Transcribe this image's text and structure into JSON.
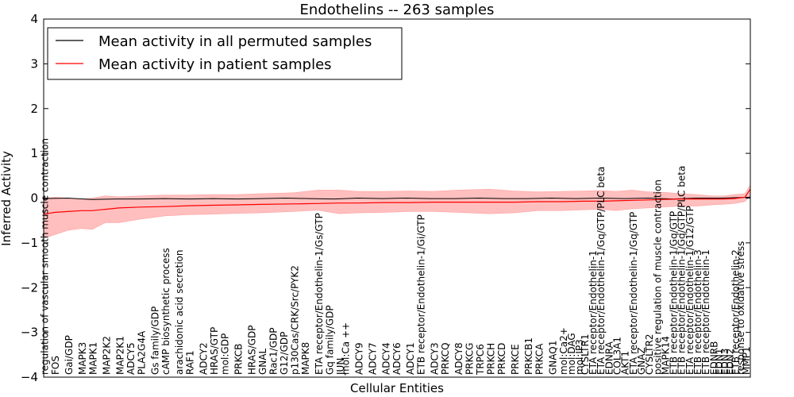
{
  "chart_data": {
    "type": "line",
    "title": "Endothelins -- 263 samples",
    "xlabel": "Cellular Entities",
    "ylabel": "Inferred Activity",
    "ylim": [
      -4,
      4
    ],
    "yticks": [
      -4,
      -3,
      -2,
      -1,
      0,
      1,
      2,
      3,
      4
    ],
    "xlim": [
      0,
      263
    ],
    "legend": {
      "placement": "top-left",
      "entries": [
        "Mean activity in all permuted samples",
        "Mean activity in patient samples"
      ]
    },
    "colors": {
      "permuted": "#000000",
      "patient": "#ff0000",
      "band": "#ff0000"
    },
    "labeled_entities": [
      {
        "i": 0,
        "label": "regulation of vascular smooth muscle contraction"
      },
      {
        "i": 4,
        "label": "FOS"
      },
      {
        "i": 9,
        "label": "Gai/GDP"
      },
      {
        "i": 14,
        "label": "MAPK3"
      },
      {
        "i": 18,
        "label": "MAPK1"
      },
      {
        "i": 23,
        "label": "MAP2K2"
      },
      {
        "i": 28,
        "label": "MAP2K1"
      },
      {
        "i": 32,
        "label": "ADCY5"
      },
      {
        "i": 36,
        "label": "PLA2G4A"
      },
      {
        "i": 41,
        "label": "Gs family/GDP"
      },
      {
        "i": 45,
        "label": "cAMP biosynthetic process"
      },
      {
        "i": 50,
        "label": "arachidonic acid secretion"
      },
      {
        "i": 54,
        "label": "RAF1"
      },
      {
        "i": 59,
        "label": "ADCY2"
      },
      {
        "i": 63,
        "label": "HRAS/GTP"
      },
      {
        "i": 67,
        "label": "mol:GDP"
      },
      {
        "i": 72,
        "label": "PRKCB"
      },
      {
        "i": 77,
        "label": "HRAS/GDP"
      },
      {
        "i": 81,
        "label": "GNAL"
      },
      {
        "i": 85,
        "label": "Rac1/GDP"
      },
      {
        "i": 89,
        "label": "G12/GDP"
      },
      {
        "i": 93,
        "label": "p130Cas/CRK/Src/PYK2"
      },
      {
        "i": 97,
        "label": "MAPK8"
      },
      {
        "i": 102,
        "label": "ETA receptor/Endothelin-1/Gs/GTP"
      },
      {
        "i": 106,
        "label": "Gq family/GDP"
      },
      {
        "i": 110,
        "label": "JUN"
      },
      {
        "i": 112,
        "label": "mol:Ca ++"
      },
      {
        "i": 117,
        "label": "ADCY9"
      },
      {
        "i": 122,
        "label": "ADCY7"
      },
      {
        "i": 127,
        "label": "ADCY4"
      },
      {
        "i": 131,
        "label": "ADCY6"
      },
      {
        "i": 136,
        "label": "ADCY1"
      },
      {
        "i": 140,
        "label": "ETB receptor/Endothelin-1/Gi/GTP"
      },
      {
        "i": 145,
        "label": "ADCY3"
      },
      {
        "i": 149,
        "label": "PRKCQ"
      },
      {
        "i": 154,
        "label": "ADCY8"
      },
      {
        "i": 158,
        "label": "PRKCG"
      },
      {
        "i": 162,
        "label": "TRPC6"
      },
      {
        "i": 166,
        "label": "PRKCH"
      },
      {
        "i": 170,
        "label": "PRKCD"
      },
      {
        "i": 175,
        "label": "PRKCE"
      },
      {
        "i": 180,
        "label": "PRKCB1"
      },
      {
        "i": 184,
        "label": "PRKCA"
      },
      {
        "i": 189,
        "label": "GNAQ1"
      },
      {
        "i": 193,
        "label": "mol:Ca2+"
      },
      {
        "i": 196,
        "label": "mol:DAG"
      },
      {
        "i": 199,
        "label": "mol:IP3"
      },
      {
        "i": 201,
        "label": "CYSLTR1"
      },
      {
        "i": 204,
        "label": "ETA receptor/Endothelin-1"
      },
      {
        "i": 207,
        "label": "ETA receptor/Endothelin-1/Gq/GTP/PLC beta"
      },
      {
        "i": 210,
        "label": "EDNRA"
      },
      {
        "i": 213,
        "label": "COL3A1"
      },
      {
        "i": 216,
        "label": "AKT1"
      },
      {
        "i": 219,
        "label": "ETA receptor/Endothelin-1/Gq/GTP"
      },
      {
        "i": 222,
        "label": "GNAZ"
      },
      {
        "i": 225,
        "label": "CYSLTR2"
      },
      {
        "i": 228,
        "label": "positive regulation of muscle contraction"
      },
      {
        "i": 231,
        "label": "MAPK14"
      },
      {
        "i": 234,
        "label": "ETB receptor/Endothelin-1/Gq/GTP"
      },
      {
        "i": 237,
        "label": "ETB receptor/Endothelin-1/Gq/GTP/PLC beta"
      },
      {
        "i": 240,
        "label": "ETA receptor/Endothelin-1/G12/GTP"
      },
      {
        "i": 243,
        "label": "ETB receptor/Endothelin-3"
      },
      {
        "i": 246,
        "label": "ETB receptor/Endothelin-1"
      },
      {
        "i": 249,
        "label": "EDNRB"
      },
      {
        "i": 251,
        "label": "EDN1"
      },
      {
        "i": 253,
        "label": "EDN3"
      },
      {
        "i": 255,
        "label": "EDN2"
      },
      {
        "i": 257,
        "label": "ETB receptor/Endothelin-2"
      },
      {
        "i": 259,
        "label": "response to oxidative stress"
      },
      {
        "i": 261,
        "label": "MMP1"
      }
    ],
    "series": [
      {
        "name": "Mean activity in patient samples",
        "x": [
          0,
          4,
          9,
          14,
          18,
          23,
          28,
          36,
          45,
          54,
          63,
          72,
          81,
          93,
          102,
          110,
          117,
          127,
          136,
          145,
          154,
          166,
          175,
          184,
          193,
          201,
          207,
          213,
          219,
          225,
          231,
          237,
          243,
          249,
          253,
          257,
          261,
          263
        ],
        "mean": [
          -0.36,
          -0.32,
          -0.3,
          -0.28,
          -0.28,
          -0.25,
          -0.22,
          -0.2,
          -0.19,
          -0.17,
          -0.16,
          -0.15,
          -0.14,
          -0.13,
          -0.12,
          -0.11,
          -0.11,
          -0.1,
          -0.1,
          -0.09,
          -0.09,
          -0.09,
          -0.09,
          -0.08,
          -0.08,
          -0.07,
          -0.07,
          -0.06,
          -0.05,
          -0.04,
          -0.03,
          -0.02,
          -0.02,
          -0.02,
          -0.02,
          -0.01,
          0.02,
          0.2
        ],
        "upper": [
          0.0,
          0.02,
          0.0,
          -0.02,
          0.0,
          0.05,
          0.03,
          0.05,
          0.07,
          0.07,
          0.08,
          0.08,
          0.1,
          0.12,
          0.18,
          0.18,
          0.15,
          0.15,
          0.16,
          0.15,
          0.18,
          0.2,
          0.16,
          0.14,
          0.15,
          0.16,
          0.17,
          0.15,
          0.18,
          0.14,
          0.13,
          0.1,
          0.08,
          0.05,
          0.05,
          0.08,
          0.1,
          0.3
        ],
        "lower": [
          -0.9,
          -0.82,
          -0.72,
          -0.68,
          -0.7,
          -0.55,
          -0.55,
          -0.47,
          -0.4,
          -0.37,
          -0.36,
          -0.34,
          -0.33,
          -0.3,
          -0.27,
          -0.35,
          -0.33,
          -0.32,
          -0.3,
          -0.3,
          -0.32,
          -0.35,
          -0.33,
          -0.28,
          -0.28,
          -0.26,
          -0.25,
          -0.28,
          -0.24,
          -0.22,
          -0.2,
          -0.18,
          -0.18,
          -0.15,
          -0.14,
          -0.12,
          -0.08,
          0.05
        ]
      },
      {
        "name": "Mean activity in all permuted samples",
        "x": [
          0,
          9,
          18,
          27,
          36,
          45,
          54,
          63,
          72,
          81,
          90,
          99,
          108,
          117,
          126,
          135,
          144,
          153,
          162,
          171,
          180,
          189,
          198,
          207,
          216,
          225,
          234,
          243,
          252,
          258,
          263
        ],
        "mean": [
          -0.01,
          0.0,
          -0.03,
          -0.02,
          -0.02,
          -0.01,
          -0.02,
          -0.01,
          -0.02,
          -0.01,
          0.0,
          -0.01,
          -0.02,
          0.0,
          -0.01,
          0.0,
          -0.01,
          -0.01,
          0.0,
          -0.01,
          -0.01,
          0.0,
          -0.01,
          0.0,
          -0.01,
          0.0,
          -0.02,
          0.0,
          0.0,
          0.01,
          0.02
        ]
      }
    ]
  }
}
